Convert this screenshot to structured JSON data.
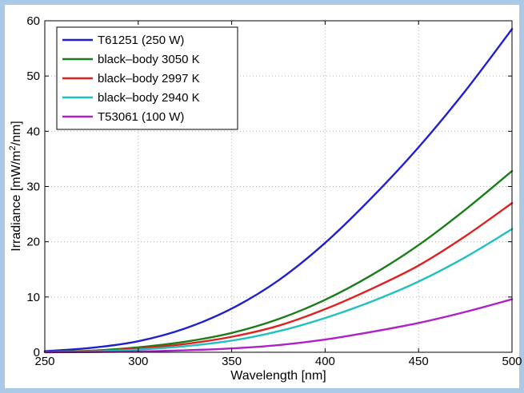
{
  "chart_data": {
    "type": "line",
    "xlabel": "Wavelength [nm]",
    "ylabel": "Irradiance [mW/m",
    "ylabel_sup": "2",
    "ylabel_tail": "/nm]",
    "xlim": [
      250,
      500
    ],
    "ylim": [
      0,
      60
    ],
    "xticks": [
      250,
      300,
      350,
      400,
      450,
      500
    ],
    "yticks": [
      0,
      10,
      20,
      30,
      40,
      50,
      60
    ],
    "grid": true,
    "legend_position": "top-left",
    "x": [
      250,
      275,
      300,
      325,
      350,
      375,
      400,
      425,
      450,
      475,
      500
    ],
    "series": [
      {
        "name": "T61251 (250 W)",
        "color": "#1f1fd0",
        "values": [
          0.2,
          0.8,
          2.0,
          4.3,
          7.9,
          13.0,
          19.8,
          28.0,
          37.1,
          47.3,
          58.5
        ]
      },
      {
        "name": "black–body 3050 K",
        "color": "#1a7d1a",
        "values": [
          0.1,
          0.3,
          0.9,
          1.9,
          3.5,
          6.0,
          9.5,
          14.0,
          19.4,
          25.8,
          32.8
        ]
      },
      {
        "name": "black–body 2997 K",
        "color": "#e02020",
        "values": [
          0.05,
          0.2,
          0.7,
          1.5,
          2.8,
          4.8,
          7.8,
          11.5,
          15.7,
          21.0,
          27.0
        ]
      },
      {
        "name": "black–body 2940 K",
        "color": "#20c0c0",
        "values": [
          0.03,
          0.15,
          0.5,
          1.1,
          2.1,
          3.8,
          6.2,
          9.2,
          12.8,
          17.2,
          22.3
        ]
      },
      {
        "name": "T53061 (100 W)",
        "color": "#b020c8",
        "values": [
          0.0,
          0.05,
          0.15,
          0.35,
          0.7,
          1.3,
          2.3,
          3.7,
          5.3,
          7.3,
          9.6
        ]
      }
    ]
  }
}
